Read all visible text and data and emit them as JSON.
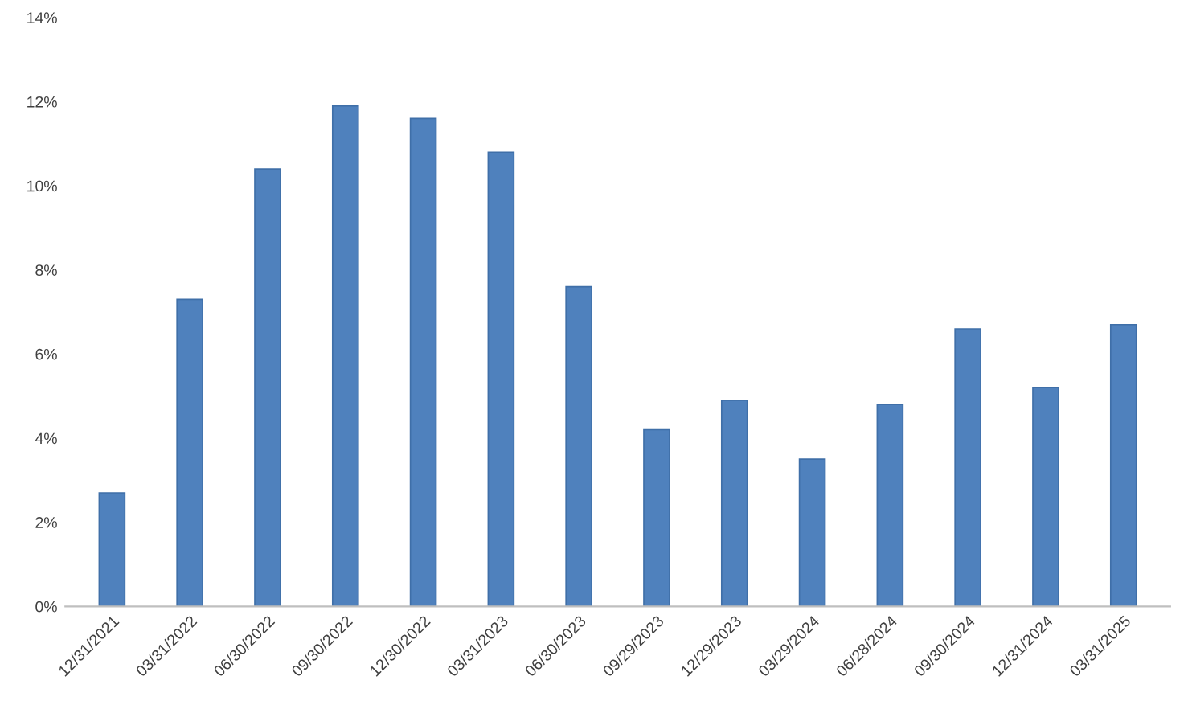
{
  "chart_data": {
    "type": "bar",
    "categories": [
      "12/31/2021",
      "03/31/2022",
      "06/30/2022",
      "09/30/2022",
      "12/30/2022",
      "03/31/2023",
      "06/30/2023",
      "09/29/2023",
      "12/29/2023",
      "03/29/2024",
      "06/28/2024",
      "09/30/2024",
      "12/31/2024",
      "03/31/2025"
    ],
    "values": [
      2.7,
      7.3,
      10.4,
      11.9,
      11.6,
      10.8,
      7.6,
      4.2,
      4.9,
      3.5,
      4.8,
      6.6,
      5.2,
      6.7
    ],
    "color": "#4f81bd",
    "ylim": [
      0,
      14
    ],
    "yticks": [
      {
        "value": 0,
        "label": "0%"
      },
      {
        "value": 2,
        "label": "2%"
      },
      {
        "value": 4,
        "label": "4%"
      },
      {
        "value": 6,
        "label": "6%"
      },
      {
        "value": 8,
        "label": "8%"
      },
      {
        "value": 10,
        "label": "10%"
      },
      {
        "value": 12,
        "label": "12%"
      },
      {
        "value": 14,
        "label": "14%"
      }
    ],
    "grid": false
  }
}
